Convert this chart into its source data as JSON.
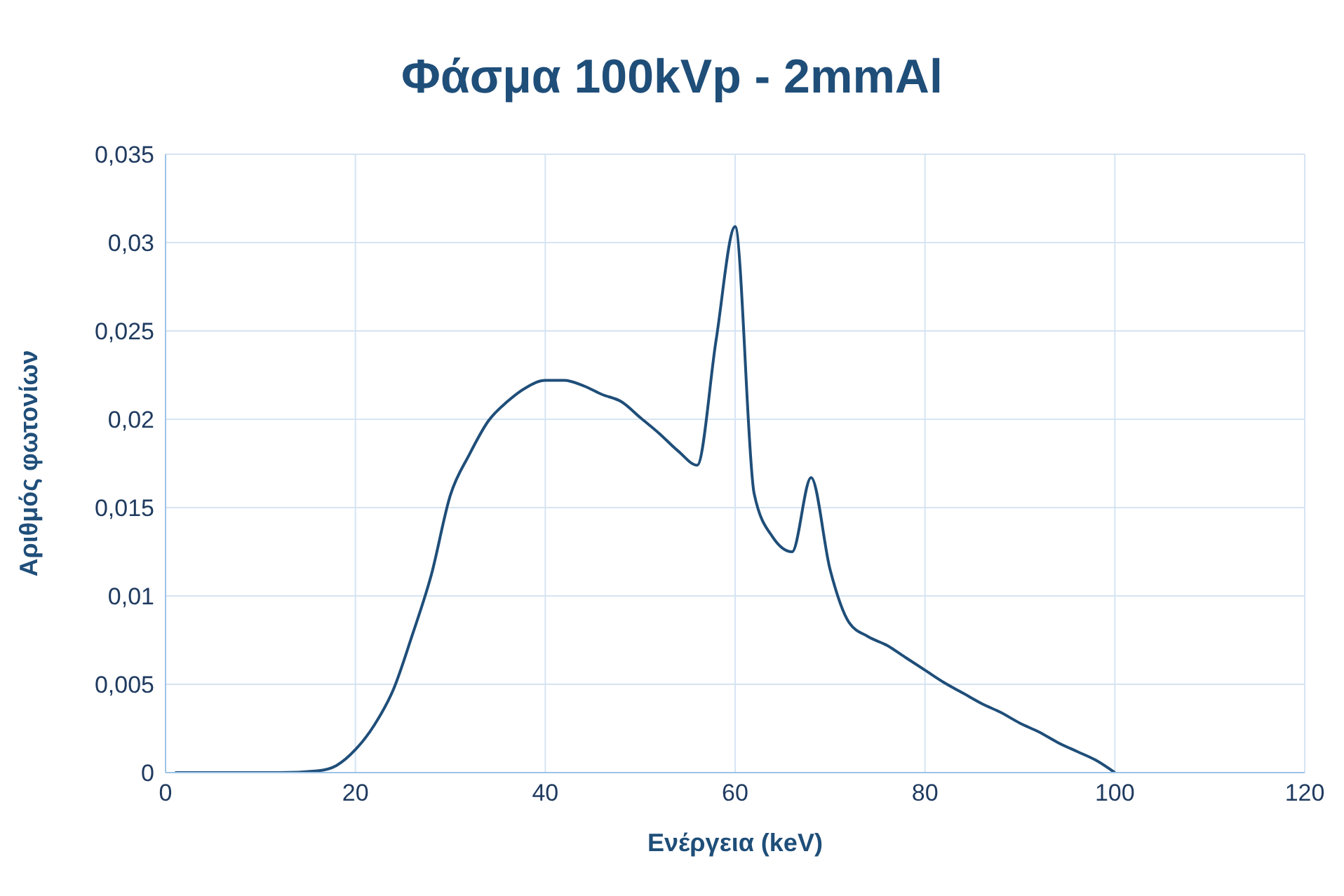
{
  "chart_data": {
    "type": "line",
    "title": "Φάσμα 100kVp - 2mmAl",
    "xlabel": "Ενέργεια (keV)",
    "ylabel": "Αριθμός φωτονίων",
    "x": [
      1,
      4,
      8,
      12,
      16,
      18,
      20,
      22,
      24,
      26,
      28,
      30,
      32,
      34,
      36,
      38,
      40,
      42,
      44,
      46,
      48,
      50,
      52,
      54,
      56,
      58,
      60,
      62,
      64,
      66,
      68,
      70,
      72,
      74,
      76,
      78,
      80,
      82,
      84,
      86,
      88,
      90,
      92,
      94,
      96,
      98,
      100
    ],
    "series": [
      {
        "color": "#1f4e79",
        "values": [
          0,
          0,
          0,
          0,
          0.0001,
          0.0004,
          0.0013,
          0.0027,
          0.0047,
          0.0078,
          0.0112,
          0.0157,
          0.018,
          0.0199,
          0.021,
          0.0218,
          0.0222,
          0.0222,
          0.0219,
          0.0214,
          0.021,
          0.0201,
          0.0192,
          0.0182,
          0.0174,
          0.0245,
          0.0309,
          0.0158,
          0.0133,
          0.0125,
          0.0167,
          0.0115,
          0.0085,
          0.0077,
          0.0072,
          0.0065,
          0.0058,
          0.0051,
          0.0045,
          0.0039,
          0.0034,
          0.0028,
          0.0023,
          0.0017,
          0.0012,
          0.0007,
          0
        ]
      }
    ],
    "xlim": [
      0,
      120
    ],
    "xticks": [
      0,
      20,
      40,
      60,
      80,
      100,
      120
    ],
    "ylim": [
      0,
      0.035
    ],
    "yticks": [
      0,
      {
        "value": 0.005,
        "label": "0,005"
      },
      {
        "value": 0.01,
        "label": "0,01"
      },
      {
        "value": 0.015,
        "label": "0,015"
      },
      {
        "value": 0.02,
        "label": "0,02"
      },
      {
        "value": 0.025,
        "label": "0,025"
      },
      {
        "value": 0.03,
        "label": "0,03"
      },
      {
        "value": 0.035,
        "label": "0,035"
      }
    ],
    "grid": true,
    "legend": false,
    "marker": "none",
    "line_style": "solid"
  }
}
